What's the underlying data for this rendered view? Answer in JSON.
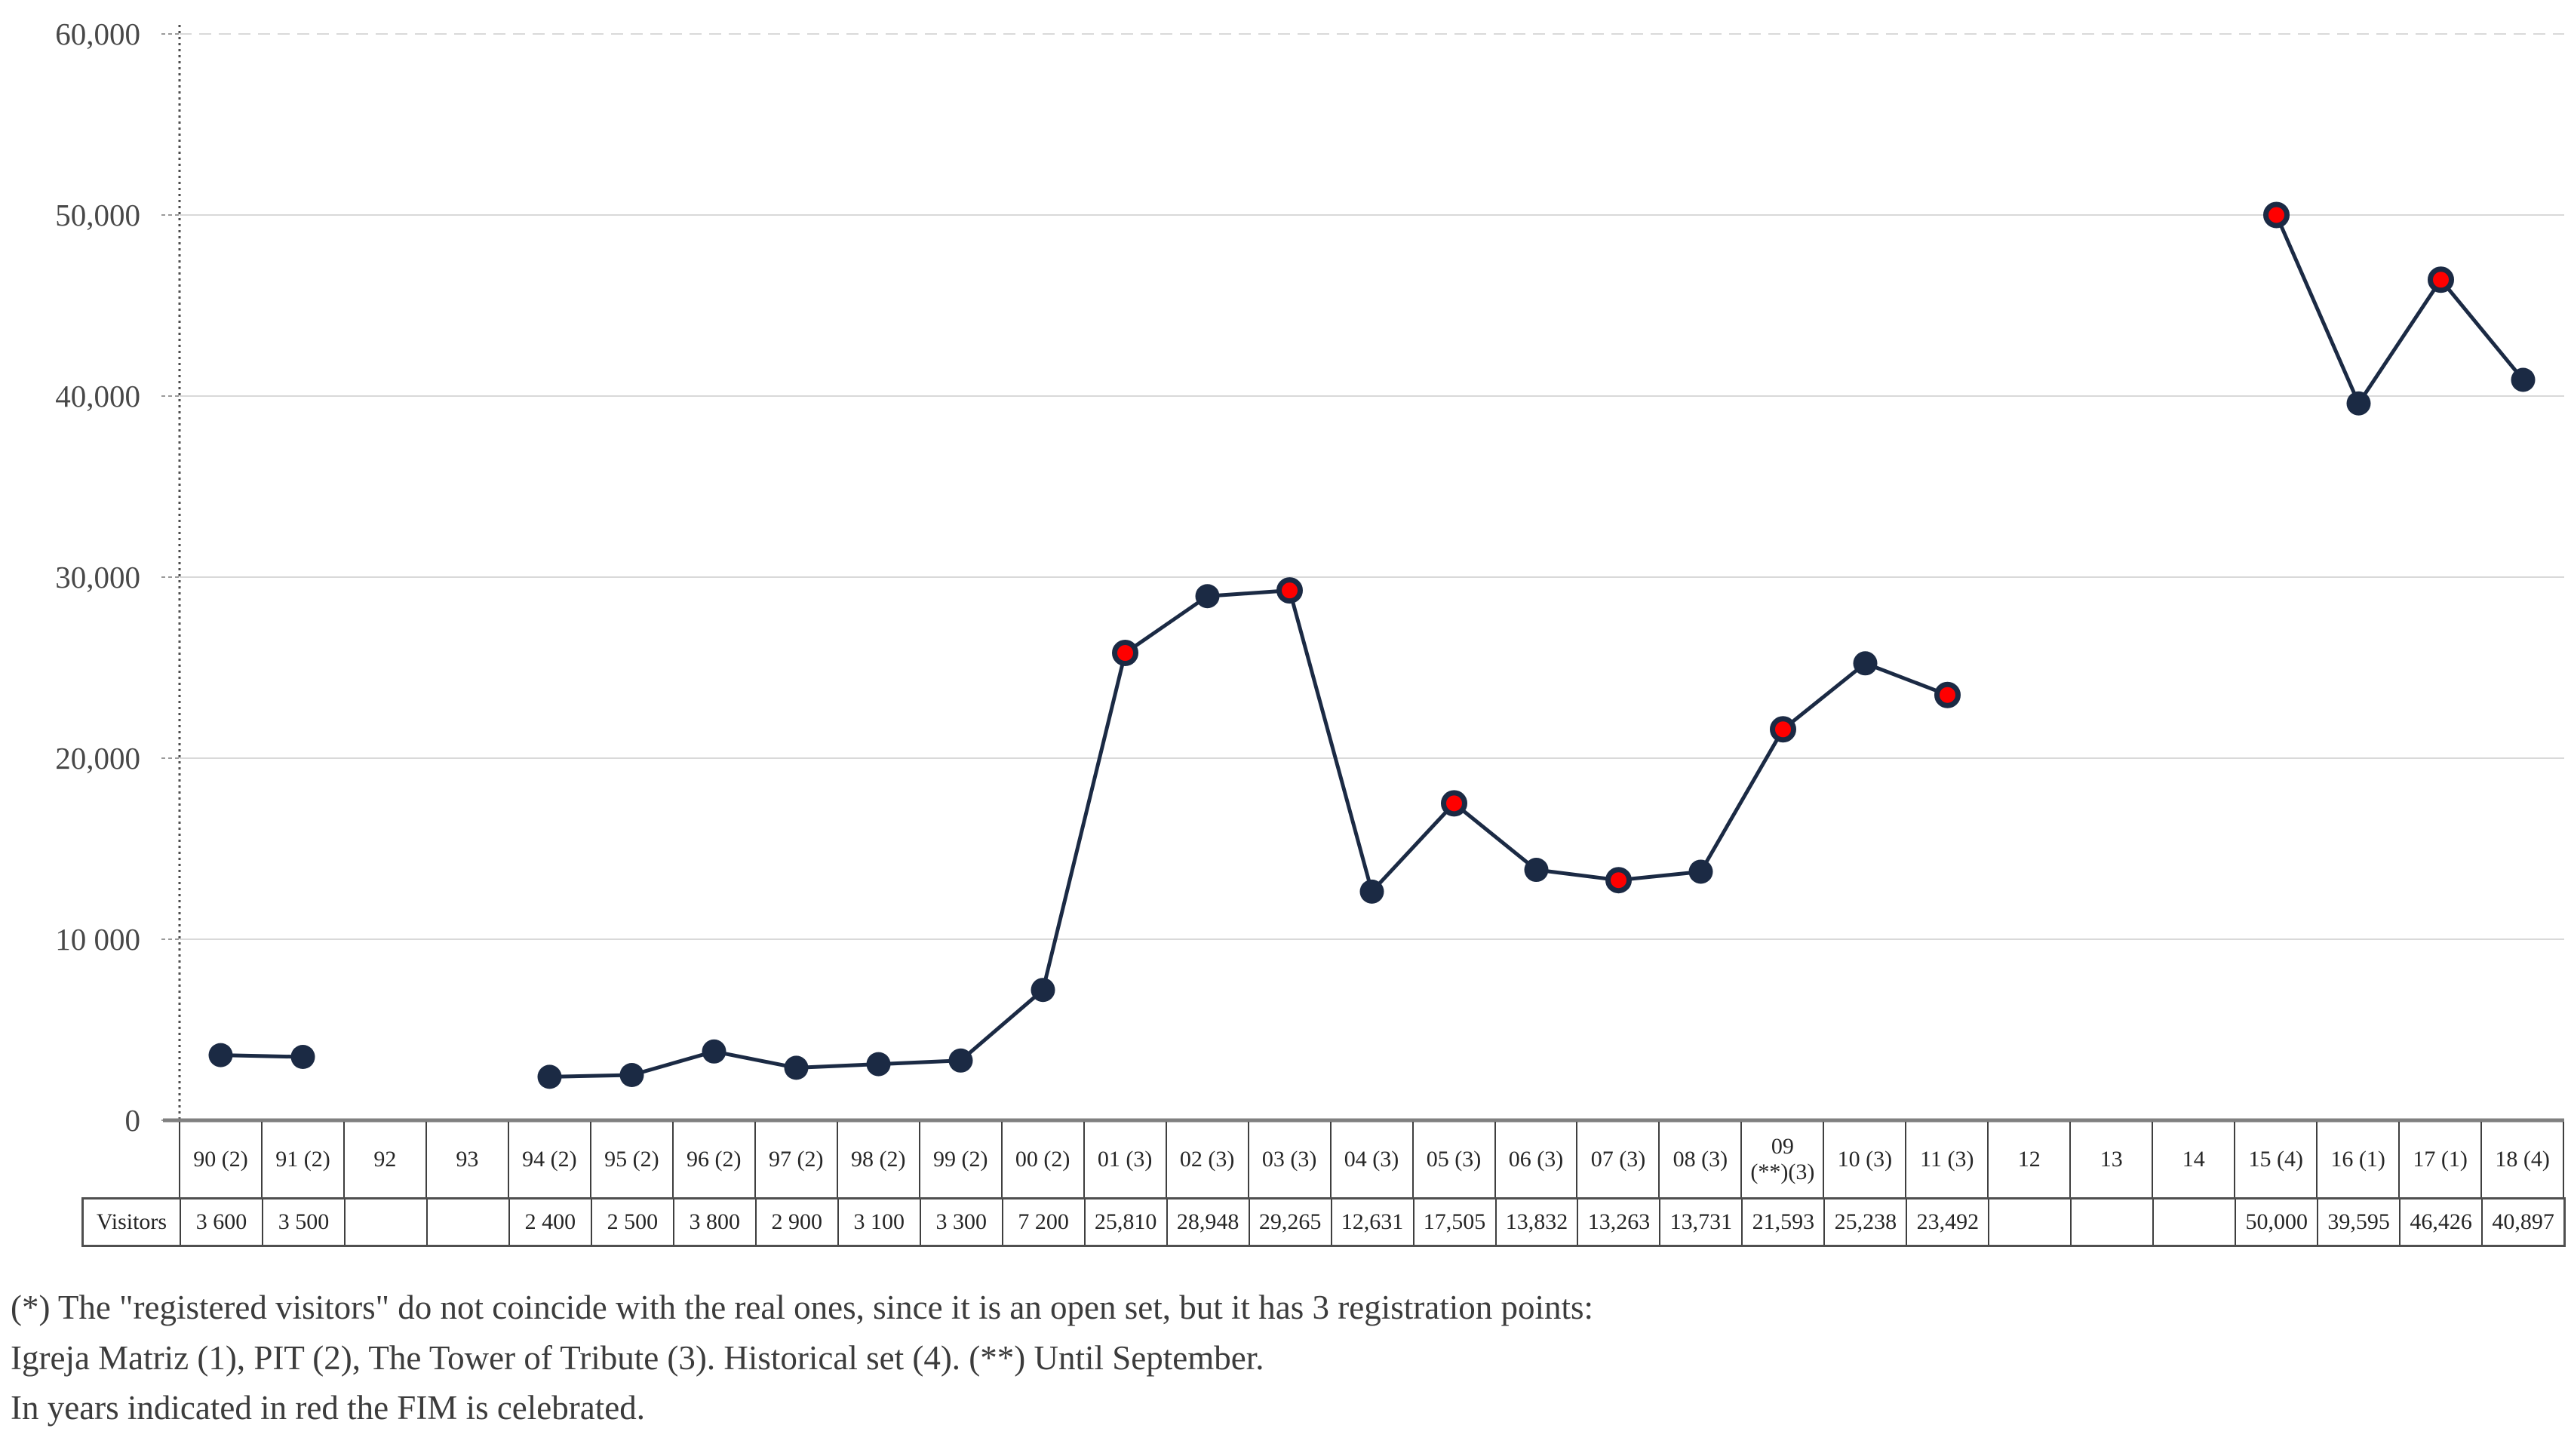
{
  "chart_data": {
    "type": "line",
    "title": "",
    "series_name": "Visitors",
    "categories": [
      "90 (2)",
      "91 (2)",
      "92",
      "93",
      "94 (2)",
      "95 (2)",
      "96 (2)",
      "97 (2)",
      "98 (2)",
      "99 (2)",
      "00 (2)",
      "01 (3)",
      "02 (3)",
      "03 (3)",
      "04 (3)",
      "05 (3)",
      "06 (3)",
      "07 (3)",
      "08 (3)",
      "09\n(**)(3)",
      "10 (3)",
      "11 (3)",
      "12",
      "13",
      "14",
      "15 (4)",
      "16 (1)",
      "17 (1)",
      "18 (4)"
    ],
    "values": [
      3600,
      3500,
      null,
      null,
      2400,
      2500,
      3800,
      2900,
      3100,
      3300,
      7200,
      25810,
      28948,
      29265,
      12631,
      17505,
      13832,
      13263,
      13731,
      21593,
      25238,
      23492,
      null,
      null,
      null,
      50000,
      39595,
      46426,
      40897
    ],
    "display_values": [
      "3 600",
      "3 500",
      "",
      "",
      "2 400",
      "2 500",
      "3 800",
      "2 900",
      "3 100",
      "3 300",
      "7 200",
      "25,810",
      "28,948",
      "29,265",
      "12,631",
      "17,505",
      "13,832",
      "13,263",
      "13,731",
      "21,593",
      "25,238",
      "23,492",
      "",
      "",
      "",
      "50,000",
      "39,595",
      "46,426",
      "40,897"
    ],
    "fim_red_indices": [
      11,
      13,
      15,
      17,
      19,
      21,
      25,
      27
    ],
    "ylim": [
      0,
      60000
    ],
    "ytick_values": [
      60000,
      50000,
      40000,
      30000,
      20000,
      10000,
      0
    ],
    "ytick_labels": [
      "60,000",
      "50,000",
      "40,000",
      "30,000",
      "20,000",
      "10 000",
      "0"
    ],
    "grid": true,
    "legend": "none",
    "colors": {
      "line": "#1b2a44",
      "point": "#1b2a44",
      "fim_point": "#ff0000",
      "gridline": "#d9d9d9",
      "axis": "#808080"
    }
  },
  "table": {
    "row_header": "Visitors"
  },
  "footnote": {
    "line1": "(*) The \"registered visitors\" do not coincide with the real ones, since it is an open set, but it has 3 registration points:",
    "line2": "Igreja Matriz (1), PIT (2), The Tower of Tribute (3). Historical set (4). (**) Until September.",
    "line3": "In years indicated in red the FIM is celebrated."
  }
}
